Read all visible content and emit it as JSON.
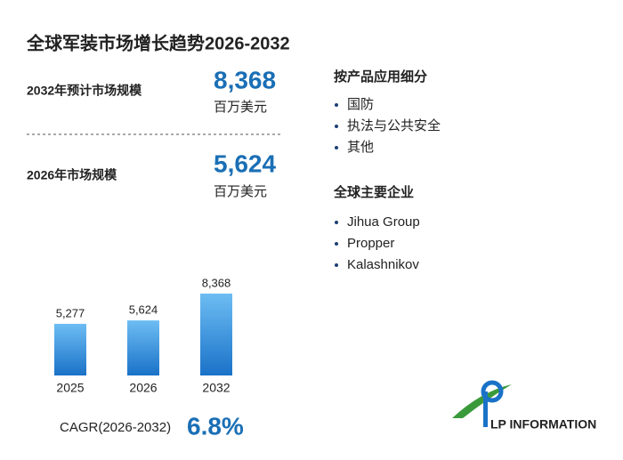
{
  "title": "全球军装市场增长趋势2026-2032",
  "forecast": {
    "label": "2032年预计市场规模",
    "value": "8,368",
    "unit": "百万美元"
  },
  "current": {
    "label": "2026年市场规模",
    "value": "5,624",
    "unit": "百万美元"
  },
  "segments": {
    "title": "按产品应用细分",
    "items": [
      "国防",
      "执法与公共安全",
      "其他"
    ]
  },
  "companies": {
    "title": "全球主要企业",
    "items": [
      "Jihua Group",
      "Propper",
      "Kalashnikov"
    ]
  },
  "chart_data": {
    "type": "bar",
    "categories": [
      "2025",
      "2026",
      "2032"
    ],
    "values": [
      5277,
      5624,
      8368
    ],
    "value_labels": [
      "5,277",
      "5,624",
      "8,368"
    ],
    "ylim": [
      0,
      9000
    ],
    "color": "#1a72c8"
  },
  "cagr": {
    "label": "CAGR(2026-2032)",
    "value": "6.8%"
  },
  "logo": "LP INFORMATION"
}
